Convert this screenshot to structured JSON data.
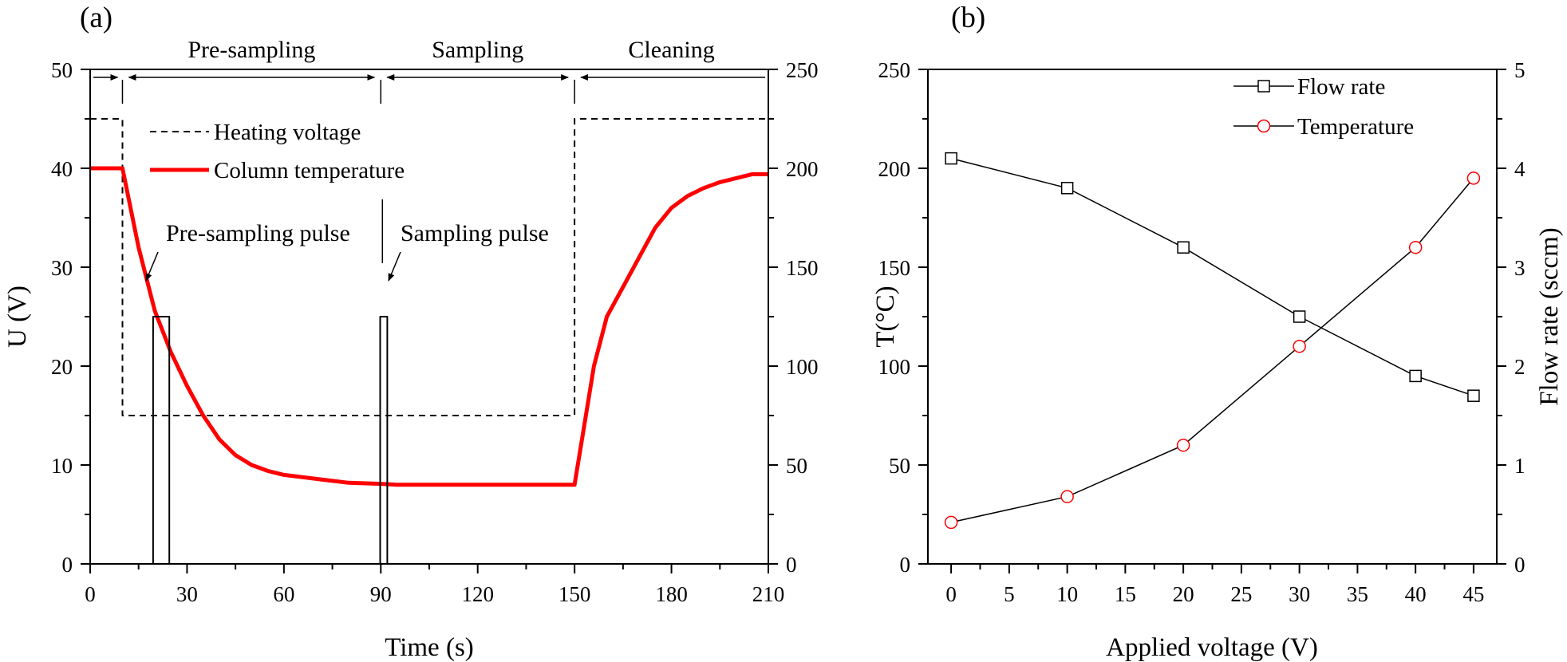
{
  "chart_data": [
    {
      "panel_label": "(a)",
      "type": "line",
      "xlabel": "Time (s)",
      "ylabel": "U (V)",
      "y2label": "",
      "xlim": [
        0,
        210
      ],
      "ylim": [
        0,
        50
      ],
      "y2lim": [
        0,
        250
      ],
      "xticks": [
        0,
        30,
        60,
        90,
        120,
        150,
        180,
        210
      ],
      "yticks": [
        0,
        10,
        20,
        30,
        40,
        50
      ],
      "y2ticks": [
        0,
        50,
        100,
        150,
        200,
        250
      ],
      "phases": [
        {
          "label": "Pre-sampling",
          "start": 10,
          "end": 90
        },
        {
          "label": "Sampling",
          "start": 90,
          "end": 150
        },
        {
          "label": "Cleaning",
          "start": 150,
          "end": 210
        }
      ],
      "annotations": [
        {
          "label": "Pre-sampling pulse",
          "x": 24,
          "y": 25
        },
        {
          "label": "Sampling pulse",
          "x": 91,
          "y": 25
        }
      ],
      "legend_position": "upper-left",
      "series": [
        {
          "name": "Heating voltage",
          "axis": "left",
          "style": "dashed",
          "color": "#000000",
          "x": [
            0,
            10,
            10,
            150,
            150,
            210
          ],
          "y": [
            45,
            45,
            15,
            15,
            45,
            45
          ]
        },
        {
          "name": "Column temperature",
          "axis": "right",
          "style": "solid",
          "color": "#ff0000",
          "x": [
            0,
            10,
            15,
            20,
            25,
            30,
            35,
            40,
            45,
            50,
            55,
            60,
            70,
            80,
            90,
            95,
            110,
            130,
            150,
            153,
            156,
            160,
            165,
            170,
            175,
            180,
            185,
            190,
            195,
            200,
            205,
            210
          ],
          "y": [
            200,
            200,
            160,
            128,
            107,
            90,
            75,
            63,
            55,
            50,
            47,
            45,
            43,
            41,
            40.5,
            40,
            40,
            40,
            40,
            70,
            100,
            125,
            140,
            155,
            170,
            180,
            186,
            190,
            193,
            195,
            197,
            197
          ]
        },
        {
          "name": "Pre-sampling pulse",
          "axis": "left",
          "style": "solid",
          "color": "#000000",
          "x": [
            19.5,
            19.5,
            24.5,
            24.5
          ],
          "y": [
            0,
            25,
            25,
            0
          ]
        },
        {
          "name": "Sampling pulse",
          "axis": "left",
          "style": "solid",
          "color": "#000000",
          "x": [
            89.8,
            89.8,
            92,
            92
          ],
          "y": [
            0,
            25,
            25,
            0
          ]
        }
      ]
    },
    {
      "panel_label": "(b)",
      "type": "line",
      "xlabel": "Applied voltage (V)",
      "ylabel": "T(°C)",
      "y2label": "Flow rate (sccm)",
      "xlim": [
        -2,
        47
      ],
      "ylim": [
        0,
        250
      ],
      "y2lim": [
        0,
        5
      ],
      "xticks": [
        0,
        5,
        10,
        15,
        20,
        25,
        30,
        35,
        40,
        45
      ],
      "yticks": [
        0,
        50,
        100,
        150,
        200,
        250
      ],
      "y2ticks": [
        0,
        1,
        2,
        3,
        4,
        5
      ],
      "legend_position": "top-right",
      "series": [
        {
          "name": "Flow rate",
          "axis": "right",
          "marker": "square",
          "color": "#000000",
          "x": [
            0,
            10,
            20,
            30,
            40,
            45
          ],
          "y": [
            4.1,
            3.8,
            3.2,
            2.5,
            1.9,
            1.7
          ]
        },
        {
          "name": "Temperature",
          "axis": "left",
          "marker": "circle",
          "color": "#ff0000",
          "x": [
            0,
            10,
            20,
            30,
            40,
            45
          ],
          "y": [
            21,
            34,
            60,
            110,
            160,
            195
          ]
        }
      ]
    }
  ]
}
